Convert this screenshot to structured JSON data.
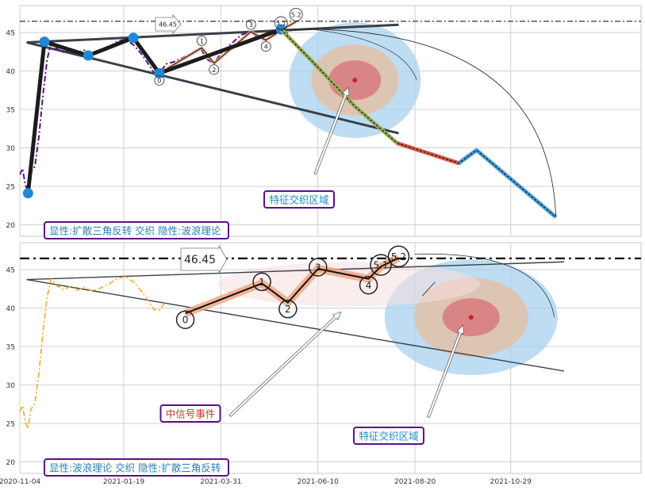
{
  "chart_data": [
    {
      "type": "line",
      "panel": "top",
      "ylim": [
        18.5,
        48.5
      ],
      "yticks": [
        20,
        25,
        30,
        35,
        40,
        45
      ],
      "grid": true,
      "reference_line": {
        "value": 46.45,
        "label": "46.45",
        "style": "dash-dot"
      },
      "price_series": [
        [
          "2020-11-04",
          26.5
        ],
        [
          "2020-11-06",
          27.3
        ],
        [
          "2020-11-08",
          25.2
        ],
        [
          "2020-11-10",
          24.3
        ],
        [
          "2020-11-12",
          26.8
        ],
        [
          "2020-11-15",
          27.6
        ],
        [
          "2020-11-18",
          31.5
        ],
        [
          "2020-11-21",
          37.0
        ],
        [
          "2020-11-24",
          41.5
        ],
        [
          "2020-11-27",
          43.8
        ],
        [
          "2020-12-01",
          42.9
        ],
        [
          "2020-12-06",
          42.4
        ],
        [
          "2020-12-11",
          42.8
        ],
        [
          "2020-12-16",
          42.3
        ],
        [
          "2020-12-21",
          42.7
        ],
        [
          "2020-12-27",
          42.2
        ],
        [
          "2021-01-02",
          42.6
        ],
        [
          "2021-01-08",
          43.1
        ],
        [
          "2021-01-14",
          43.8
        ],
        [
          "2021-01-20",
          44.1
        ],
        [
          "2021-01-26",
          43.4
        ],
        [
          "2021-02-01",
          42.2
        ],
        [
          "2021-02-06",
          40.9
        ],
        [
          "2021-02-10",
          39.8
        ],
        [
          "2021-02-14",
          39.7
        ],
        [
          "2021-02-19",
          40.9
        ],
        [
          "2021-02-25",
          41.2
        ],
        [
          "2021-03-03",
          41.7
        ],
        [
          "2021-03-10",
          42.3
        ],
        [
          "2021-03-16",
          43.0
        ],
        [
          "2021-03-21",
          41.5
        ],
        [
          "2021-03-26",
          41.0
        ],
        [
          "2021-04-01",
          42.5
        ],
        [
          "2021-04-08",
          43.6
        ],
        [
          "2021-04-15",
          44.7
        ],
        [
          "2021-04-22",
          45.1
        ],
        [
          "2021-04-28",
          44.2
        ],
        [
          "2021-05-03",
          44.0
        ],
        [
          "2021-05-08",
          44.5
        ],
        [
          "2021-05-13",
          45.2
        ],
        [
          "2021-05-18",
          44.9
        ],
        [
          "2021-05-22",
          45.4
        ]
      ],
      "wave_points": [
        {
          "label": "0",
          "date": "2021-02-14",
          "value": 39.7
        },
        {
          "label": "1",
          "date": "2021-03-17",
          "value": 43.0
        },
        {
          "label": "2",
          "date": "2021-03-26",
          "value": 41.0
        },
        {
          "label": "3",
          "date": "2021-04-22",
          "value": 45.1
        },
        {
          "label": "4",
          "date": "2021-05-03",
          "value": 44.0
        },
        {
          "label": "5.1",
          "date": "2021-05-14",
          "value": 45.3
        },
        {
          "label": "5.2",
          "date": "2021-05-25",
          "value": 46.4
        }
      ],
      "pivot_points": [
        [
          "2020-11-10",
          24.1
        ],
        [
          "2020-11-22",
          43.8
        ],
        [
          "2020-12-24",
          42.0
        ],
        [
          "2021-01-26",
          44.3
        ],
        [
          "2021-02-14",
          39.7
        ],
        [
          "2021-05-14",
          45.4
        ]
      ],
      "triangle_lines": [
        [
          [
            "2020-11-09",
            43.7
          ],
          [
            "2021-08-08",
            46.0
          ]
        ],
        [
          [
            "2020-11-09",
            43.7
          ],
          [
            "2021-08-08",
            31.9
          ]
        ]
      ],
      "projection": [
        [
          "2021-05-14",
          45.4
        ],
        [
          "2021-06-05",
          41.4
        ],
        [
          "2021-07-07",
          35.4
        ],
        [
          "2021-08-07",
          30.6
        ],
        [
          "2021-09-21",
          28.0
        ],
        [
          "2021-10-04",
          29.7
        ],
        [
          "2021-12-01",
          21.0
        ]
      ],
      "zone": {
        "date": "2021-07-07",
        "value": 38.8
      },
      "annotations": [
        {
          "text": "特征交织区域",
          "color": "#1f8cc0"
        }
      ],
      "caption": "显性:扩散三角反转 交织 隐性:波浪理论"
    },
    {
      "type": "line",
      "panel": "bottom",
      "ylim": [
        18.5,
        48.5
      ],
      "yticks": [
        20,
        25,
        30,
        35,
        40,
        45
      ],
      "xticks": [
        "2020-11-04",
        "2021-01-19",
        "2021-03-31",
        "2021-06-10",
        "2021-08-20",
        "2021-10-29"
      ],
      "grid": true,
      "reference_line": {
        "value": 46.45,
        "label": "46.45",
        "style": "dash-dot"
      },
      "wave_points": [
        {
          "label": "0",
          "date": "2021-03-05",
          "value": 39.3
        },
        {
          "label": "1",
          "date": "2021-04-30",
          "value": 43.2
        },
        {
          "label": "2",
          "date": "2021-05-19",
          "value": 40.7
        },
        {
          "label": "3",
          "date": "2021-06-10",
          "value": 45.1
        },
        {
          "label": "4",
          "date": "2021-07-17",
          "value": 43.8
        },
        {
          "label": "5.1",
          "date": "2021-07-26",
          "value": 45.4
        },
        {
          "label": "5.2",
          "date": "2021-08-08",
          "value": 46.5
        }
      ],
      "triangle_lines": [
        [
          [
            "2020-11-09",
            43.7
          ],
          [
            "2021-12-07",
            46.0
          ]
        ],
        [
          [
            "2020-11-09",
            43.7
          ],
          [
            "2021-12-07",
            31.8
          ]
        ]
      ],
      "zone": {
        "date": "2021-09-30",
        "value": 38.8
      },
      "annotations": [
        {
          "text": "中信号事件",
          "color": "#c0392b"
        },
        {
          "text": "特征交织区域",
          "color": "#1f8cc0"
        }
      ],
      "caption": "显性:波浪理论 交织 隐性:扩散三角反转"
    }
  ],
  "colors": {
    "price_top": "#5b0f8c",
    "price_bottom": "#f0a928",
    "pivot": "#1e88d6",
    "proj_green": "#9aad5a",
    "proj_red": "#d85a4a",
    "proj_blue": "#4a9ed8",
    "zone_outer": "#a8d2ee",
    "zone_mid": "#e3c1a8",
    "zone_inner": "#d96a72",
    "caption_border": "#5b0f8c",
    "caption_text": "#2a7fb8"
  }
}
